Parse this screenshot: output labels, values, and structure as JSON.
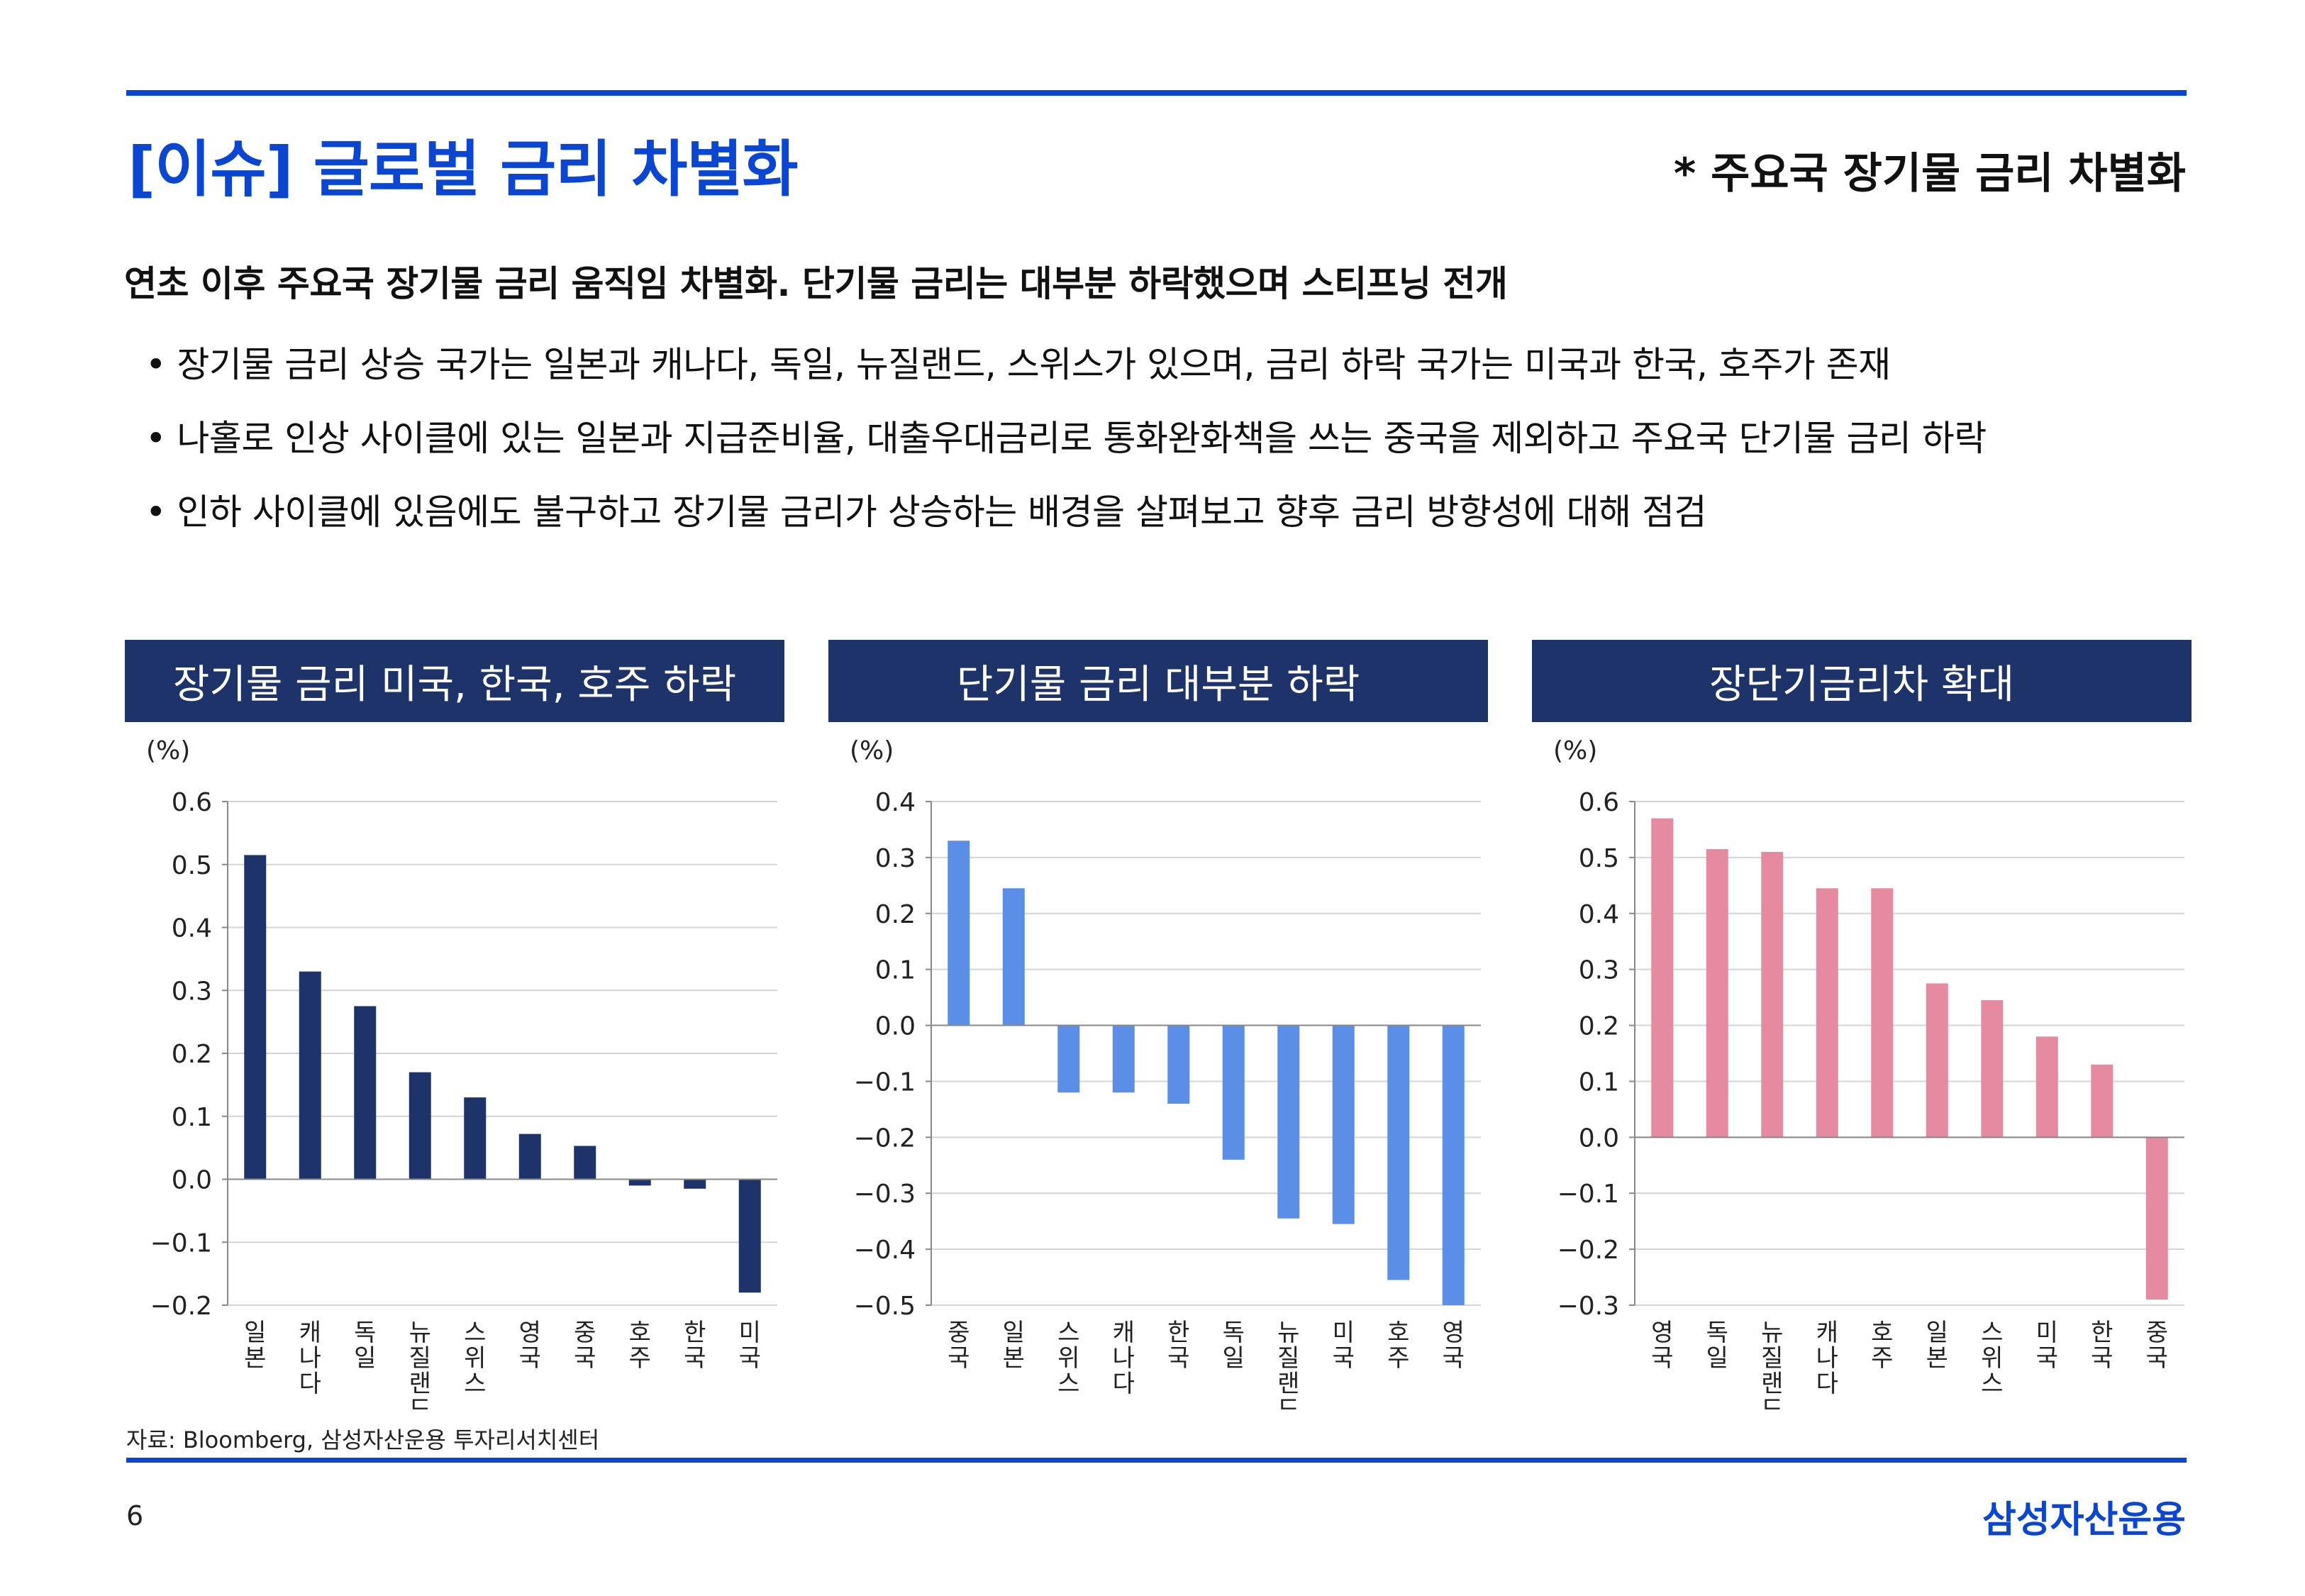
{
  "header": {
    "title": "[이슈] 글로벌 금리 차별화",
    "subtitle": "* 주요국 장기물 금리 차별화"
  },
  "summary": {
    "headline": "연초 이후 주요국 장기물 금리 움직임 차별화. 단기물 금리는 대부분 하락했으며 스티프닝 전개",
    "bullets": [
      "장기물 금리 상승 국가는 일본과 캐나다, 독일, 뉴질랜드, 스위스가 있으며, 금리 하락 국가는 미국과 한국, 호주가 존재",
      "나홀로 인상 사이클에 있는 일본과 지급준비율, 대출우대금리로 통화완화책을 쓰는 중국을 제외하고 주요국 단기물 금리 하락",
      "인하 사이클에 있음에도 불구하고 장기물 금리가 상승하는 배경을 살펴보고 향후 금리 방향성에 대해 점검"
    ]
  },
  "panels": [
    {
      "header": "장기물 금리 미국, 한국, 호주 하락"
    },
    {
      "header": "단기물 금리 대부분 하락"
    },
    {
      "header": "장단기금리차 확대"
    }
  ],
  "chart_data": [
    {
      "type": "bar",
      "unit": "(%)",
      "categories": [
        "일본",
        "캐나다",
        "독일",
        "뉴질랜드",
        "스위스",
        "영국",
        "중국",
        "호주",
        "한국",
        "미국"
      ],
      "values": [
        0.515,
        0.33,
        0.275,
        0.17,
        0.13,
        0.072,
        0.053,
        -0.01,
        -0.015,
        -0.18
      ],
      "ylim": [
        -0.2,
        0.6
      ],
      "yticks": [
        "0.6",
        "0.5",
        "0.4",
        "0.3",
        "0.2",
        "0.1",
        "0.0",
        "−0.1",
        "−0.2"
      ],
      "grid": true,
      "color": "#1f336b"
    },
    {
      "type": "bar",
      "unit": "(%)",
      "categories": [
        "중국",
        "일본",
        "스위스",
        "캐나다",
        "한국",
        "독일",
        "뉴질랜드",
        "미국",
        "호주",
        "영국"
      ],
      "values": [
        0.33,
        0.245,
        -0.12,
        -0.12,
        -0.14,
        -0.24,
        -0.345,
        -0.355,
        -0.455,
        -0.5
      ],
      "ylim": [
        -0.5,
        0.4
      ],
      "yticks": [
        "0.4",
        "0.3",
        "0.2",
        "0.1",
        "0.0",
        "−0.1",
        "−0.2",
        "−0.3",
        "−0.4",
        "−0.5"
      ],
      "grid": true,
      "color": "#5b8ee6"
    },
    {
      "type": "bar",
      "unit": "(%)",
      "categories": [
        "영국",
        "독일",
        "뉴질랜드",
        "캐나다",
        "호주",
        "일본",
        "스위스",
        "미국",
        "한국",
        "중국"
      ],
      "values": [
        0.57,
        0.515,
        0.51,
        0.445,
        0.445,
        0.275,
        0.245,
        0.18,
        0.13,
        -0.29
      ],
      "ylim": [
        -0.3,
        0.6
      ],
      "yticks": [
        "0.6",
        "0.5",
        "0.4",
        "0.3",
        "0.2",
        "0.1",
        "0.0",
        "−0.1",
        "−0.2",
        "−0.3"
      ],
      "grid": true,
      "color": "#e58aa0"
    }
  ],
  "footer": {
    "source": "자료: Bloomberg, 삼성자산운용 투자리서치센터",
    "page": "6",
    "logo": "삼성자산운용"
  }
}
